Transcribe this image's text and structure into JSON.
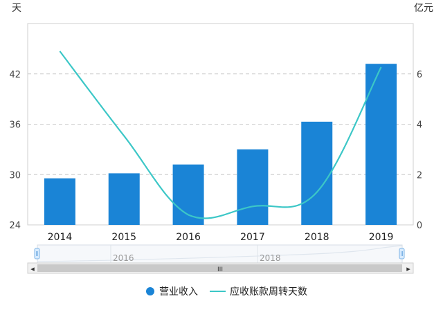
{
  "chart_data": {
    "type": "bar",
    "categories": [
      "2014",
      "2015",
      "2016",
      "2017",
      "2018",
      "2019"
    ],
    "series": [
      {
        "name": "营业收入",
        "type": "bar",
        "axis": "right",
        "color": "#1a84d6",
        "values": [
          1.85,
          2.05,
          2.4,
          3.0,
          4.1,
          6.4
        ]
      },
      {
        "name": "应收账款周转天数",
        "type": "line",
        "axis": "left",
        "color": "#3cc7c7",
        "values": [
          44.7,
          34.6,
          25.2,
          26.2,
          27.9,
          42.8
        ]
      }
    ],
    "left_axis": {
      "unit": "天",
      "ylim": [
        24,
        48
      ],
      "ticks": [
        "24",
        "30",
        "36",
        "42"
      ]
    },
    "right_axis": {
      "unit": "亿元",
      "ylim": [
        0,
        8
      ],
      "ticks": [
        "0",
        "2",
        "4",
        "6"
      ]
    },
    "grid": true,
    "legend_position": "bottom-center"
  },
  "slider": {
    "tick_labels": [
      "2016",
      "2018"
    ],
    "handle_icon": "drag-handle-icon",
    "left_arrow": "◂",
    "right_arrow": "▸",
    "grip": "III"
  }
}
